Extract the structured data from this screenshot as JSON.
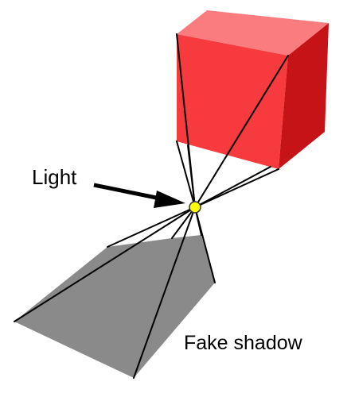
{
  "labels": {
    "light": "Light",
    "shadow": "Fake shadow"
  },
  "colors": {
    "cube_front": "#f63a3e",
    "cube_top": "#fb7c7f",
    "cube_side": "#c51317",
    "shadow": "#8a8a8a",
    "light": "#ffff00",
    "light_outline": "#333333",
    "ray": "#000000"
  },
  "icons": {
    "light": "light-source-icon",
    "arrow": "arrow-icon"
  }
}
